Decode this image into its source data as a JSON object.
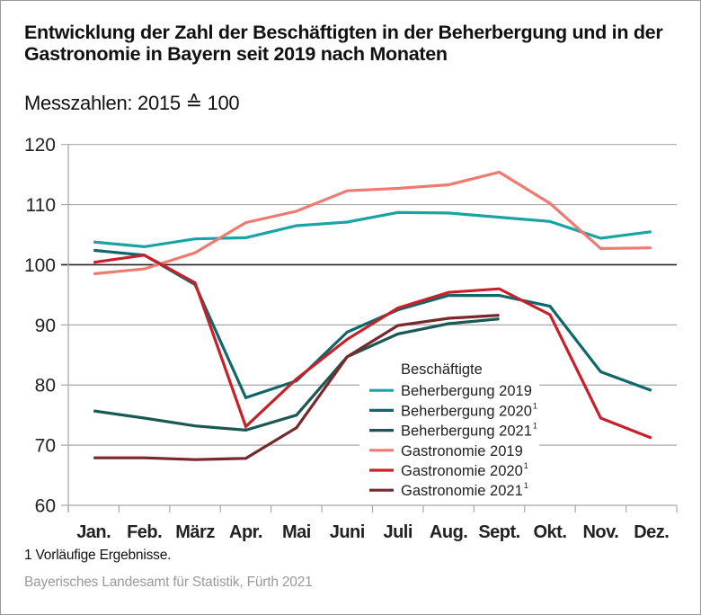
{
  "chart_data": {
    "type": "line",
    "title": "Entwicklung der Zahl der Beschäftigten in der Beherbergung und in der Gastronomie in Bayern seit 2019 nach Monaten",
    "subtitle": "Messzahlen: 2015 ≙ 100",
    "xlabel": "",
    "ylabel": "",
    "ylim": [
      60,
      120
    ],
    "yticks": [
      60,
      70,
      80,
      90,
      100,
      110,
      120
    ],
    "reference_line": 100,
    "grid": true,
    "categories": [
      "Jan.",
      "Feb.",
      "März",
      "Apr.",
      "Mai",
      "Juni",
      "Juli",
      "Aug.",
      "Sept.",
      "Okt.",
      "Nov.",
      "Dez."
    ],
    "legend_title": "Beschäftigte",
    "legend_position": "bottom-center",
    "series": [
      {
        "name": "Beherbergung 2019",
        "footnote": "",
        "color": "#1aa3a6",
        "values": [
          103.8,
          103.0,
          104.3,
          104.5,
          106.5,
          107.1,
          108.7,
          108.6,
          107.9,
          107.2,
          104.4,
          105.5
        ]
      },
      {
        "name": "Beherbergung 2020",
        "footnote": "1",
        "color": "#0f676a",
        "values": [
          102.4,
          101.6,
          96.7,
          77.9,
          80.7,
          88.8,
          92.5,
          94.9,
          94.9,
          93.1,
          82.2,
          79.1
        ]
      },
      {
        "name": "Beherbergung 2021",
        "footnote": "1",
        "color": "#1b5853",
        "values": [
          75.7,
          74.5,
          73.2,
          72.5,
          75.0,
          84.7,
          88.5,
          90.2,
          91.0,
          null,
          null,
          null
        ]
      },
      {
        "name": "Gastronomie 2019",
        "footnote": "",
        "color": "#ee7a72",
        "values": [
          98.5,
          99.3,
          102.0,
          107.0,
          108.9,
          112.3,
          112.7,
          113.3,
          115.4,
          110.2,
          102.7,
          102.8
        ]
      },
      {
        "name": "Gastronomie 2020",
        "footnote": "1",
        "color": "#c8202a",
        "values": [
          100.4,
          101.6,
          97.0,
          73.1,
          81.0,
          87.6,
          92.8,
          95.4,
          96.0,
          91.7,
          74.5,
          71.2
        ]
      },
      {
        "name": "Gastronomie 2021",
        "footnote": "1",
        "color": "#78282b",
        "values": [
          67.9,
          67.9,
          67.6,
          67.8,
          72.9,
          84.7,
          89.9,
          91.1,
          91.6,
          null,
          null,
          null
        ]
      }
    ]
  },
  "footnote": "1  Vorläufige Ergebnisse.",
  "source": "Bayerisches Landesamt für Statistik, Fürth 2021"
}
